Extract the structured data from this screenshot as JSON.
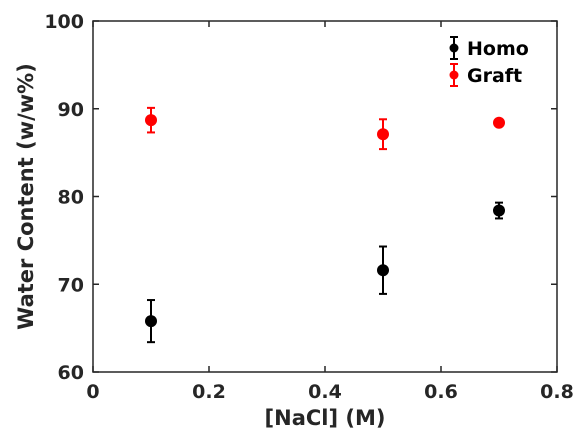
{
  "chart_data": {
    "type": "scatter",
    "xlabel": "[NaCl] (M)",
    "ylabel": "Water Content (w/w%)",
    "xlim": [
      0,
      0.8
    ],
    "ylim": [
      60,
      100
    ],
    "xticks": [
      0,
      0.2,
      0.4,
      0.6,
      0.8
    ],
    "xtick_labels": [
      "0",
      "0.2",
      "0.4",
      "0.6",
      "0.8"
    ],
    "yticks": [
      60,
      70,
      80,
      90,
      100
    ],
    "ytick_labels": [
      "60",
      "70",
      "80",
      "90",
      "100"
    ],
    "grid": false,
    "legend_position": "top-right",
    "series": [
      {
        "name": "Homo",
        "color": "#000000",
        "x": [
          0.1,
          0.5,
          0.7
        ],
        "y": [
          65.8,
          71.6,
          78.4
        ],
        "err": [
          2.4,
          2.7,
          0.9
        ]
      },
      {
        "name": "Graft",
        "color": "#ff0000",
        "x": [
          0.1,
          0.5,
          0.7
        ],
        "y": [
          88.7,
          87.1,
          88.4
        ],
        "err": [
          1.4,
          1.7,
          0.3
        ]
      }
    ]
  }
}
